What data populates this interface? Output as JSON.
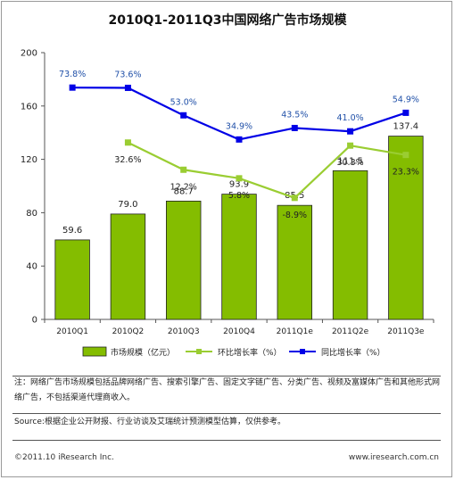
{
  "title": "2010Q1-2011Q3中国网络广告市场规模",
  "chart_data": {
    "type": "bar",
    "categories": [
      "2010Q1",
      "2010Q2",
      "2010Q3",
      "2010Q4",
      "2011Q1e",
      "2011Q2e",
      "2011Q3e"
    ],
    "ylim": [
      0,
      200
    ],
    "yticks": [
      0,
      40,
      80,
      120,
      160,
      200
    ],
    "series": [
      {
        "name": "市场规模（亿元）",
        "type": "bar",
        "values": [
          59.6,
          79.0,
          88.7,
          93.9,
          85.5,
          111.5,
          137.4
        ],
        "labels": [
          "59.6",
          "79.0",
          "88.7",
          "93.9",
          "85.5",
          "111.5",
          "137.4"
        ],
        "color": "#84bd00"
      },
      {
        "name": "环比增长率（%）",
        "type": "line",
        "values": [
          null,
          32.6,
          12.2,
          5.8,
          -8.9,
          30.3,
          23.3
        ],
        "labels": [
          "",
          "32.6%",
          "12.2%",
          "5.8%",
          "-8.9%",
          "30.3%",
          "23.3%"
        ],
        "color": "#9acd32"
      },
      {
        "name": "同比增长率（%）",
        "type": "line",
        "values": [
          73.8,
          73.6,
          53.0,
          34.9,
          43.5,
          41.0,
          54.9
        ],
        "labels": [
          "73.8%",
          "73.6%",
          "53.0%",
          "34.9%",
          "43.5%",
          "41.0%",
          "54.9%"
        ],
        "color": "#0000e6",
        "label_color": "#2050a8"
      }
    ],
    "grid": false,
    "legend": "bottom"
  },
  "notes": {
    "main": "注：网络广告市场规模包括品牌网络广告、搜索引擎广告、固定文字链广告、分类广告、视频及富媒体广告和其他形式网络广告，不包括渠道代理商收入。",
    "source": "Source:根据企业公开财报、行业访谈及艾瑞统计预测模型估算，仅供参考。"
  },
  "footer": {
    "copyright": "©2011.10 iResearch Inc.",
    "website": "www.iresearch.com.cn"
  }
}
